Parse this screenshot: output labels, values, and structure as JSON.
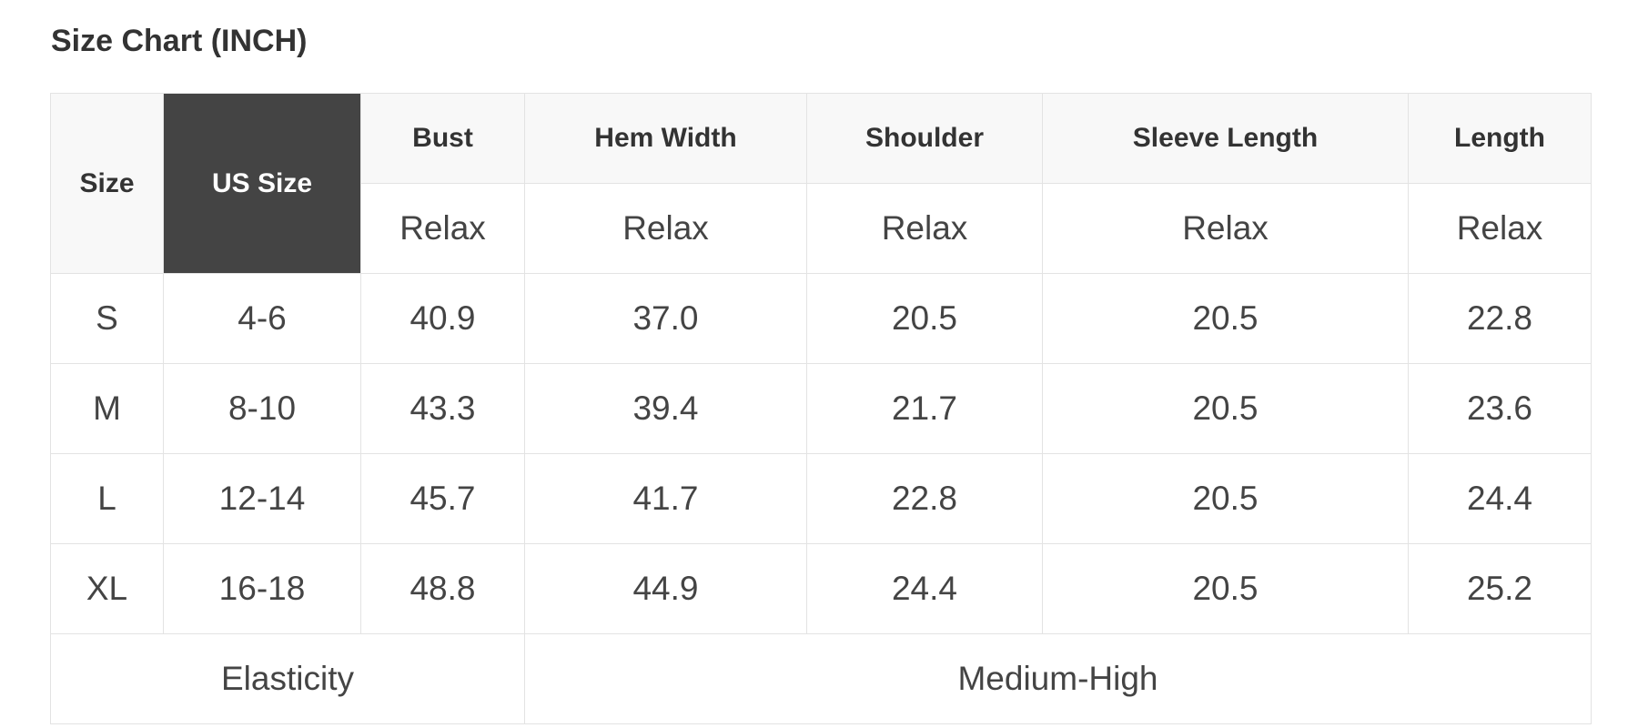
{
  "title": "Size Chart (INCH)",
  "table": {
    "header": [
      "Size",
      "US Size",
      "Bust",
      "Hem Width",
      "Shoulder",
      "Sleeve Length",
      "Length"
    ],
    "subheader": [
      "Relax",
      "Relax",
      "Relax",
      "Relax",
      "Relax"
    ],
    "rows": [
      [
        "S",
        "4-6",
        "40.9",
        "37.0",
        "20.5",
        "20.5",
        "22.8"
      ],
      [
        "M",
        "8-10",
        "43.3",
        "39.4",
        "21.7",
        "20.5",
        "23.6"
      ],
      [
        "L",
        "12-14",
        "45.7",
        "41.7",
        "22.8",
        "20.5",
        "24.4"
      ],
      [
        "XL",
        "16-18",
        "48.8",
        "44.9",
        "24.4",
        "20.5",
        "25.2"
      ]
    ],
    "footer": [
      "Elasticity",
      "Medium-High"
    ]
  }
}
